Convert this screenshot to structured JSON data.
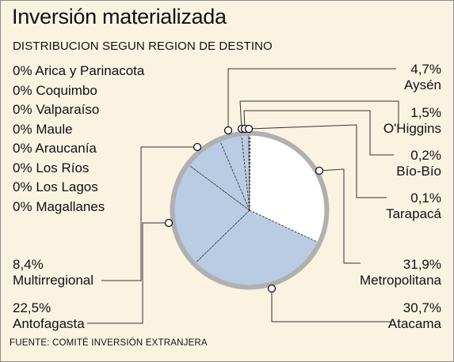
{
  "title": "Inversión materializada",
  "subtitle": "DISTRIBUCION SEGUN REGION DE DESTINO",
  "source": "FUENTE: COMITÉ INVERSIÓN EXTRANJERA",
  "colors": {
    "background": "#fbf3e2",
    "slice_white": "#ffffff",
    "slice_blue": "#b9cce3",
    "pie_border": "#b0b0b0",
    "leader": "#333333"
  },
  "zero_regions": [
    {
      "value": "0%",
      "name": "Arica y Parinacota"
    },
    {
      "value": "0%",
      "name": "Coquimbo"
    },
    {
      "value": "0%",
      "name": "Valparaíso"
    },
    {
      "value": "0%",
      "name": "Maule"
    },
    {
      "value": "0%",
      "name": "Araucanía"
    },
    {
      "value": "0%",
      "name": "Los Ríos"
    },
    {
      "value": "0%",
      "name": "Los Lagos"
    },
    {
      "value": "0%",
      "name": "Magallanes"
    }
  ],
  "chart_data": {
    "type": "pie",
    "start": "12 o'clock",
    "direction": "clockwise",
    "slices": [
      {
        "name": "Tarapacá",
        "value_label": "0,1%",
        "value": 0.1,
        "color": "#ffffff"
      },
      {
        "name": "Metropolitana",
        "value_label": "31,9%",
        "value": 31.9,
        "color": "#ffffff"
      },
      {
        "name": "Atacama",
        "value_label": "30,7%",
        "value": 30.7,
        "color": "#b9cce3"
      },
      {
        "name": "Antofagasta",
        "value_label": "22,5%",
        "value": 22.5,
        "color": "#b9cce3"
      },
      {
        "name": "Multirregional",
        "value_label": "8,4%",
        "value": 8.4,
        "color": "#b9cce3"
      },
      {
        "name": "Aysén",
        "value_label": "4,7%",
        "value": 4.7,
        "color": "#b9cce3"
      },
      {
        "name": "O'Higgins",
        "value_label": "1,5%",
        "value": 1.5,
        "color": "#b9cce3"
      },
      {
        "name": "Bío-Bío",
        "value_label": "0,2%",
        "value": 0.2,
        "color": "#b9cce3"
      }
    ]
  }
}
